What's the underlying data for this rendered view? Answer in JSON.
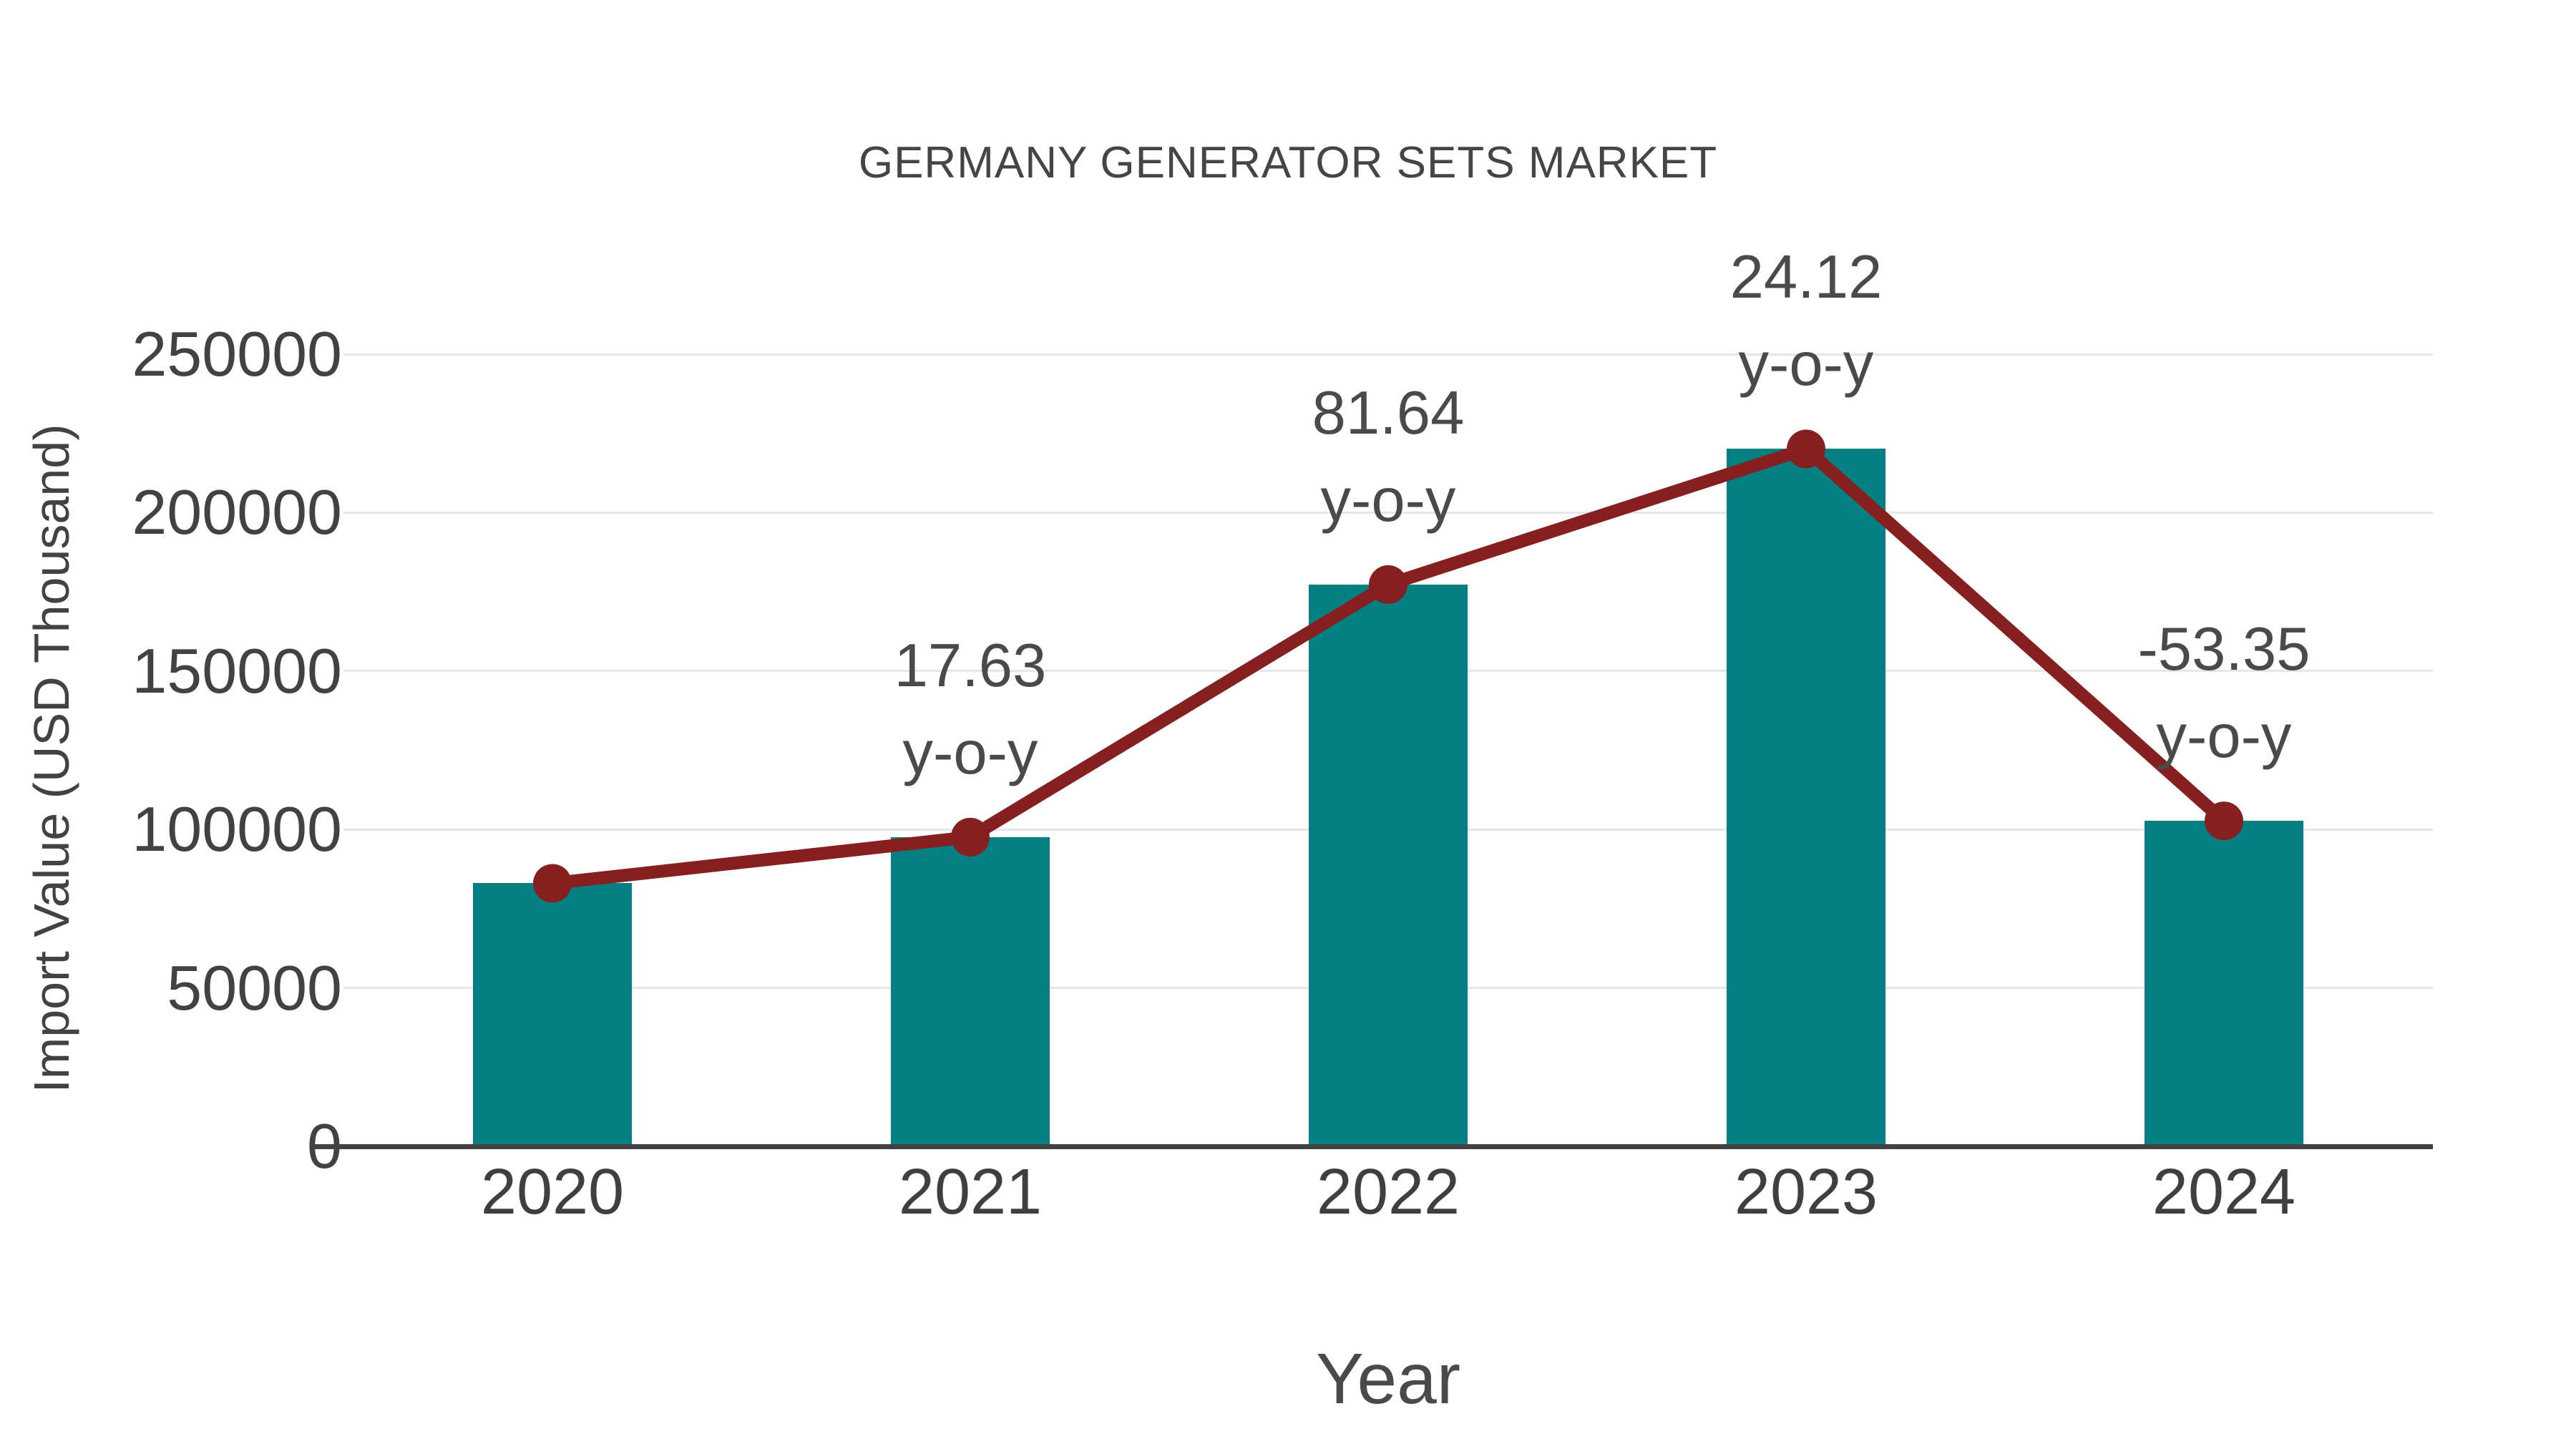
{
  "chart_data": {
    "type": "bar",
    "title": "GERMANY GENERATOR SETS MARKET",
    "xlabel": "Year",
    "ylabel": "Import Value (USD Thousand)",
    "categories": [
      "2020",
      "2021",
      "2022",
      "2023",
      "2024"
    ],
    "series": [
      {
        "name": "import-value-bars",
        "type": "bar",
        "color": "#048082",
        "values": [
          83000,
          97600,
          177300,
          220100,
          102700
        ]
      },
      {
        "name": "import-value-trend-line",
        "type": "line",
        "color": "#861f1f",
        "values": [
          83000,
          97600,
          177300,
          220100,
          102700
        ]
      }
    ],
    "annotations": [
      {
        "category": "2021",
        "value_label": "17.63",
        "suffix": "y-o-y"
      },
      {
        "category": "2022",
        "value_label": "81.64",
        "suffix": "y-o-y"
      },
      {
        "category": "2023",
        "value_label": "24.12",
        "suffix": "y-o-y"
      },
      {
        "category": "2024",
        "value_label": "-53.35",
        "suffix": "y-o-y"
      }
    ],
    "yticks": [
      0,
      50000,
      100000,
      150000,
      200000,
      250000
    ],
    "ytick_labels": [
      "0",
      "50000",
      "100000",
      "150000",
      "200000",
      "250000"
    ],
    "ylim": [
      0,
      250000
    ],
    "grid": true,
    "legend": "none",
    "colors": {
      "bar": "#048082",
      "line": "#861f1f",
      "marker": "#861f1f",
      "grid": "#e6e6e6",
      "axis": "#424242",
      "text": "#424242",
      "title": "#454545"
    }
  }
}
